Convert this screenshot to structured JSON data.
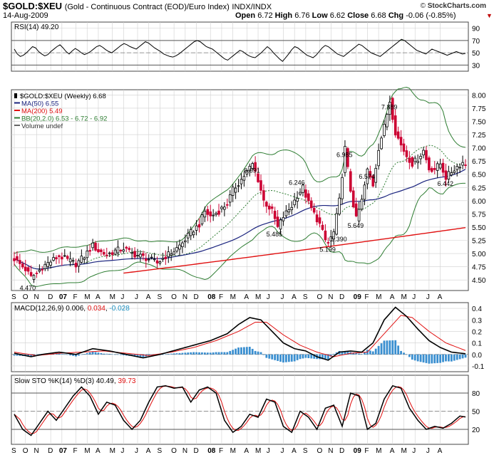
{
  "header": {
    "ticker": "$GOLD:$XEU",
    "description": "(Gold - Continuous Contract (EOD)/Euro Index)",
    "exchange": "INDX/INDX",
    "date": "14-Aug-2009",
    "open_label": "Open",
    "open": "6.72",
    "high_label": "High",
    "high": "6.76",
    "low_label": "Low",
    "low": "6.62",
    "close_label": "Close",
    "close": "6.68",
    "chg_label": "Chg",
    "chg": "-0.06 (-0.85%)",
    "brand": "StockCharts.com",
    "copyright": "©"
  },
  "colors": {
    "up": "#000000",
    "down": "#cc0033",
    "ma50": "#1a237e",
    "ma200": "#e01010",
    "bb": "#2e7d32",
    "macd_line": "#000000",
    "macd_signal": "#e01010",
    "histogram": "#3a8fd0",
    "grid": "#cfcfcf"
  },
  "chart_data": [
    {
      "type": "line",
      "title": "RSI(14) 49.20",
      "legend": [
        "RSI(14) 49.20"
      ],
      "y_ticks": [
        30,
        50,
        70,
        90
      ],
      "ylim": [
        20,
        100
      ],
      "reference_lines": [
        70,
        30
      ],
      "values": [
        56,
        48,
        44,
        46,
        50,
        55,
        60,
        58,
        52,
        48,
        45,
        47,
        52,
        56,
        60,
        63,
        58,
        52,
        48,
        53,
        57,
        54,
        50,
        47,
        49,
        52,
        56,
        60,
        62,
        59,
        55,
        52,
        50,
        54,
        58,
        62,
        65,
        63,
        60,
        58,
        56,
        60,
        64,
        68,
        66,
        62,
        58,
        55,
        52,
        48,
        46,
        44,
        43,
        45,
        48,
        52,
        56,
        60,
        64,
        68,
        70,
        68,
        64,
        60,
        58,
        56,
        52,
        48,
        44,
        40,
        38,
        42,
        46,
        50,
        54,
        52,
        48,
        45,
        43,
        42,
        46,
        50,
        55,
        60,
        56,
        50,
        45,
        40,
        36,
        42,
        48,
        55,
        60,
        58,
        54,
        50,
        46,
        44,
        42,
        46,
        52,
        58,
        62,
        60,
        56,
        52,
        48,
        46,
        44,
        48,
        52,
        56,
        60,
        64,
        62,
        58,
        54,
        50,
        48,
        46,
        44,
        48,
        52,
        56,
        60,
        64,
        68,
        72,
        70,
        66,
        62,
        58,
        54,
        52,
        50,
        48,
        52,
        56,
        54,
        52,
        50,
        48,
        46,
        48,
        50,
        52,
        50,
        48,
        49
      ]
    },
    {
      "type": "candlestick",
      "title": "$GOLD:$XEU (Weekly) 6.68",
      "legend": [
        "$GOLD:$XEU (Weekly) 6.68",
        "MA(50) 6.55",
        "MA(200) 5.49",
        "BB(20,2.0) 6.53 - 6.72 - 6.92",
        "Volume undef"
      ],
      "y_ticks": [
        "4.50",
        "4.75",
        "5.00",
        "5.25",
        "5.50",
        "5.75",
        "6.00",
        "6.25",
        "6.50",
        "6.75",
        "7.00",
        "7.25",
        "7.50",
        "7.75",
        "8.00"
      ],
      "ylim": [
        4.3,
        8.1
      ],
      "close_path": [
        [
          0,
          4.9
        ],
        [
          4,
          4.7
        ],
        [
          6,
          4.55
        ],
        [
          8,
          4.62
        ],
        [
          10,
          4.75
        ],
        [
          13,
          4.85
        ],
        [
          16,
          4.95
        ],
        [
          19,
          4.88
        ],
        [
          22,
          4.8
        ],
        [
          25,
          4.95
        ],
        [
          28,
          5.15
        ],
        [
          30,
          5.05
        ],
        [
          33,
          4.98
        ],
        [
          36,
          5.05
        ],
        [
          39,
          5.1
        ],
        [
          42,
          5.0
        ],
        [
          45,
          4.95
        ],
        [
          48,
          4.9
        ],
        [
          51,
          4.82
        ],
        [
          54,
          4.95
        ],
        [
          57,
          5.05
        ],
        [
          60,
          5.2
        ],
        [
          63,
          5.4
        ],
        [
          66,
          5.55
        ],
        [
          68,
          5.8
        ],
        [
          70,
          5.7
        ],
        [
          73,
          5.8
        ],
        [
          76,
          5.95
        ],
        [
          78,
          6.2
        ],
        [
          81,
          6.4
        ],
        [
          83,
          6.55
        ],
        [
          85,
          6.69
        ],
        [
          87,
          6.4
        ],
        [
          89,
          6.0
        ],
        [
          92,
          5.8
        ],
        [
          94,
          5.49
        ],
        [
          96,
          5.7
        ],
        [
          99,
          5.9
        ],
        [
          101,
          6.1
        ],
        [
          103,
          6.25
        ],
        [
          105,
          5.95
        ],
        [
          107,
          5.75
        ],
        [
          109,
          5.55
        ],
        [
          111,
          5.25
        ],
        [
          112,
          5.2
        ],
        [
          114,
          5.4
        ],
        [
          116,
          6.0
        ],
        [
          118,
          6.99
        ],
        [
          120,
          6.2
        ],
        [
          122,
          5.65
        ],
        [
          124,
          6.0
        ],
        [
          126,
          6.57
        ],
        [
          128,
          6.3
        ],
        [
          130,
          7.0
        ],
        [
          132,
          7.4
        ],
        [
          134,
          7.89
        ],
        [
          136,
          7.3
        ],
        [
          138,
          7.05
        ],
        [
          140,
          6.85
        ],
        [
          142,
          6.7
        ],
        [
          144,
          6.8
        ],
        [
          146,
          6.95
        ],
        [
          148,
          6.6
        ],
        [
          150,
          6.6
        ],
        [
          152,
          6.7
        ],
        [
          154,
          6.44
        ],
        [
          156,
          6.55
        ],
        [
          158,
          6.65
        ],
        [
          160,
          6.72
        ],
        [
          161,
          6.68
        ]
      ],
      "candle_count": 162,
      "annotations": [
        {
          "label": "4.470",
          "x": "2006-Nov",
          "y": 4.47
        },
        {
          "label": "6.691",
          "x": "2008-Mar",
          "y": 6.691
        },
        {
          "label": "6.246",
          "x": "2008-Jul",
          "y": 6.246
        },
        {
          "label": "5.485",
          "x": "2008-Apr",
          "y": 5.485
        },
        {
          "label": "6.985",
          "x": "2008-Sep",
          "y": 6.985
        },
        {
          "label": "6.574",
          "x": "2008-Nov",
          "y": 6.574
        },
        {
          "label": "5.199",
          "x": "2008-Sep",
          "y": 5.199
        },
        {
          "label": "5.390",
          "x": "2008-Oct",
          "y": 5.39
        },
        {
          "label": "5.649",
          "x": "2008-Dec",
          "y": 5.649
        },
        {
          "label": "7.889",
          "x": "2009-Feb",
          "y": 7.889
        },
        {
          "label": "6.442",
          "x": "2009-Jul",
          "y": 6.442
        }
      ],
      "ma50_end": 6.55,
      "ma200_end": 5.49,
      "bb_end": [
        6.53,
        6.72,
        6.92
      ]
    },
    {
      "type": "line",
      "title": "MACD(12,26,9) 0.006, 0.034, -0.028",
      "legend_parts": [
        {
          "text": "MACD(12,26,9) 0.006, ",
          "color": "#000000"
        },
        {
          "text": "0.034",
          "color": "#e01010"
        },
        {
          "text": ", ",
          "color": "#000000"
        },
        {
          "text": "-0.028",
          "color": "#1a8fc0"
        }
      ],
      "y_ticks": [
        "0.4",
        "0.3",
        "0.2",
        "0.1",
        "0.0",
        "-0.1"
      ],
      "ylim": [
        -0.15,
        0.45
      ],
      "macd_path": [
        [
          0,
          0.01
        ],
        [
          6,
          -0.02
        ],
        [
          10,
          0.0
        ],
        [
          16,
          0.02
        ],
        [
          22,
          0.0
        ],
        [
          28,
          0.05
        ],
        [
          34,
          0.03
        ],
        [
          40,
          0.0
        ],
        [
          46,
          -0.03
        ],
        [
          52,
          0.0
        ],
        [
          58,
          0.04
        ],
        [
          64,
          0.08
        ],
        [
          70,
          0.12
        ],
        [
          76,
          0.18
        ],
        [
          80,
          0.26
        ],
        [
          84,
          0.32
        ],
        [
          88,
          0.3
        ],
        [
          92,
          0.2
        ],
        [
          96,
          0.1
        ],
        [
          100,
          0.05
        ],
        [
          104,
          0.03
        ],
        [
          108,
          -0.02
        ],
        [
          112,
          -0.05
        ],
        [
          116,
          0.02
        ],
        [
          120,
          0.03
        ],
        [
          124,
          0.02
        ],
        [
          128,
          0.1
        ],
        [
          132,
          0.3
        ],
        [
          136,
          0.41
        ],
        [
          140,
          0.33
        ],
        [
          144,
          0.22
        ],
        [
          148,
          0.12
        ],
        [
          152,
          0.06
        ],
        [
          156,
          0.02
        ],
        [
          161,
          0.006
        ]
      ],
      "signal_path": [
        [
          0,
          0.02
        ],
        [
          8,
          -0.01
        ],
        [
          16,
          0.01
        ],
        [
          24,
          0.02
        ],
        [
          32,
          0.03
        ],
        [
          40,
          0.01
        ],
        [
          48,
          -0.01
        ],
        [
          56,
          0.02
        ],
        [
          64,
          0.06
        ],
        [
          72,
          0.12
        ],
        [
          80,
          0.2
        ],
        [
          86,
          0.28
        ],
        [
          90,
          0.28
        ],
        [
          96,
          0.17
        ],
        [
          102,
          0.08
        ],
        [
          108,
          0.02
        ],
        [
          114,
          -0.02
        ],
        [
          120,
          0.01
        ],
        [
          126,
          0.02
        ],
        [
          132,
          0.18
        ],
        [
          138,
          0.34
        ],
        [
          142,
          0.32
        ],
        [
          148,
          0.2
        ],
        [
          154,
          0.1
        ],
        [
          161,
          0.034
        ]
      ]
    },
    {
      "type": "line",
      "title": "Slow STO %K(14) %D(3) 40.49, 39.73",
      "legend_parts": [
        {
          "text": "Slow STO %K(14) %D(3) 40.49, ",
          "color": "#000000"
        },
        {
          "text": "39.73",
          "color": "#e01010"
        }
      ],
      "y_ticks": [
        20,
        50,
        80
      ],
      "ylim": [
        0,
        100
      ],
      "reference_lines": [
        80,
        20
      ],
      "k_path": [
        [
          0,
          45
        ],
        [
          3,
          20
        ],
        [
          6,
          10
        ],
        [
          9,
          30
        ],
        [
          12,
          50
        ],
        [
          15,
          35
        ],
        [
          18,
          55
        ],
        [
          21,
          75
        ],
        [
          24,
          90
        ],
        [
          27,
          75
        ],
        [
          30,
          45
        ],
        [
          33,
          65
        ],
        [
          36,
          60
        ],
        [
          39,
          35
        ],
        [
          42,
          20
        ],
        [
          45,
          35
        ],
        [
          48,
          65
        ],
        [
          51,
          90
        ],
        [
          54,
          92
        ],
        [
          57,
          88
        ],
        [
          60,
          90
        ],
        [
          63,
          65
        ],
        [
          66,
          85
        ],
        [
          69,
          90
        ],
        [
          72,
          80
        ],
        [
          75,
          35
        ],
        [
          78,
          15
        ],
        [
          81,
          25
        ],
        [
          84,
          45
        ],
        [
          87,
          40
        ],
        [
          90,
          70
        ],
        [
          93,
          65
        ],
        [
          96,
          25
        ],
        [
          99,
          15
        ],
        [
          102,
          50
        ],
        [
          105,
          40
        ],
        [
          108,
          20
        ],
        [
          111,
          55
        ],
        [
          114,
          60
        ],
        [
          117,
          25
        ],
        [
          120,
          80
        ],
        [
          123,
          75
        ],
        [
          126,
          20
        ],
        [
          129,
          30
        ],
        [
          132,
          70
        ],
        [
          135,
          92
        ],
        [
          138,
          88
        ],
        [
          141,
          55
        ],
        [
          144,
          35
        ],
        [
          147,
          20
        ],
        [
          150,
          25
        ],
        [
          153,
          22
        ],
        [
          156,
          30
        ],
        [
          159,
          42
        ],
        [
          161,
          40.49
        ]
      ]
    }
  ],
  "x_axis": {
    "labels": [
      {
        "t": "S",
        "i": 0
      },
      {
        "t": "O",
        "i": 4
      },
      {
        "t": "N",
        "i": 8
      },
      {
        "t": "D",
        "i": 13
      },
      {
        "t": "07",
        "i": 17,
        "bold": true
      },
      {
        "t": "F",
        "i": 22
      },
      {
        "t": "M",
        "i": 26
      },
      {
        "t": "A",
        "i": 30
      },
      {
        "t": "M",
        "i": 35
      },
      {
        "t": "J",
        "i": 39
      },
      {
        "t": "J",
        "i": 44
      },
      {
        "t": "A",
        "i": 48
      },
      {
        "t": "S",
        "i": 52
      },
      {
        "t": "O",
        "i": 57
      },
      {
        "t": "N",
        "i": 61
      },
      {
        "t": "D",
        "i": 65
      },
      {
        "t": "08",
        "i": 70,
        "bold": true
      },
      {
        "t": "F",
        "i": 74
      },
      {
        "t": "M",
        "i": 78
      },
      {
        "t": "A",
        "i": 83
      },
      {
        "t": "M",
        "i": 87
      },
      {
        "t": "J",
        "i": 91
      },
      {
        "t": "J",
        "i": 96
      },
      {
        "t": "A",
        "i": 100
      },
      {
        "t": "S",
        "i": 104
      },
      {
        "t": "O",
        "i": 109
      },
      {
        "t": "N",
        "i": 113
      },
      {
        "t": "D",
        "i": 117
      },
      {
        "t": "09",
        "i": 122,
        "bold": true
      },
      {
        "t": "F",
        "i": 126
      },
      {
        "t": "M",
        "i": 130
      },
      {
        "t": "A",
        "i": 135
      },
      {
        "t": "M",
        "i": 139
      },
      {
        "t": "J",
        "i": 143
      },
      {
        "t": "J",
        "i": 148
      },
      {
        "t": "A",
        "i": 152
      }
    ]
  }
}
